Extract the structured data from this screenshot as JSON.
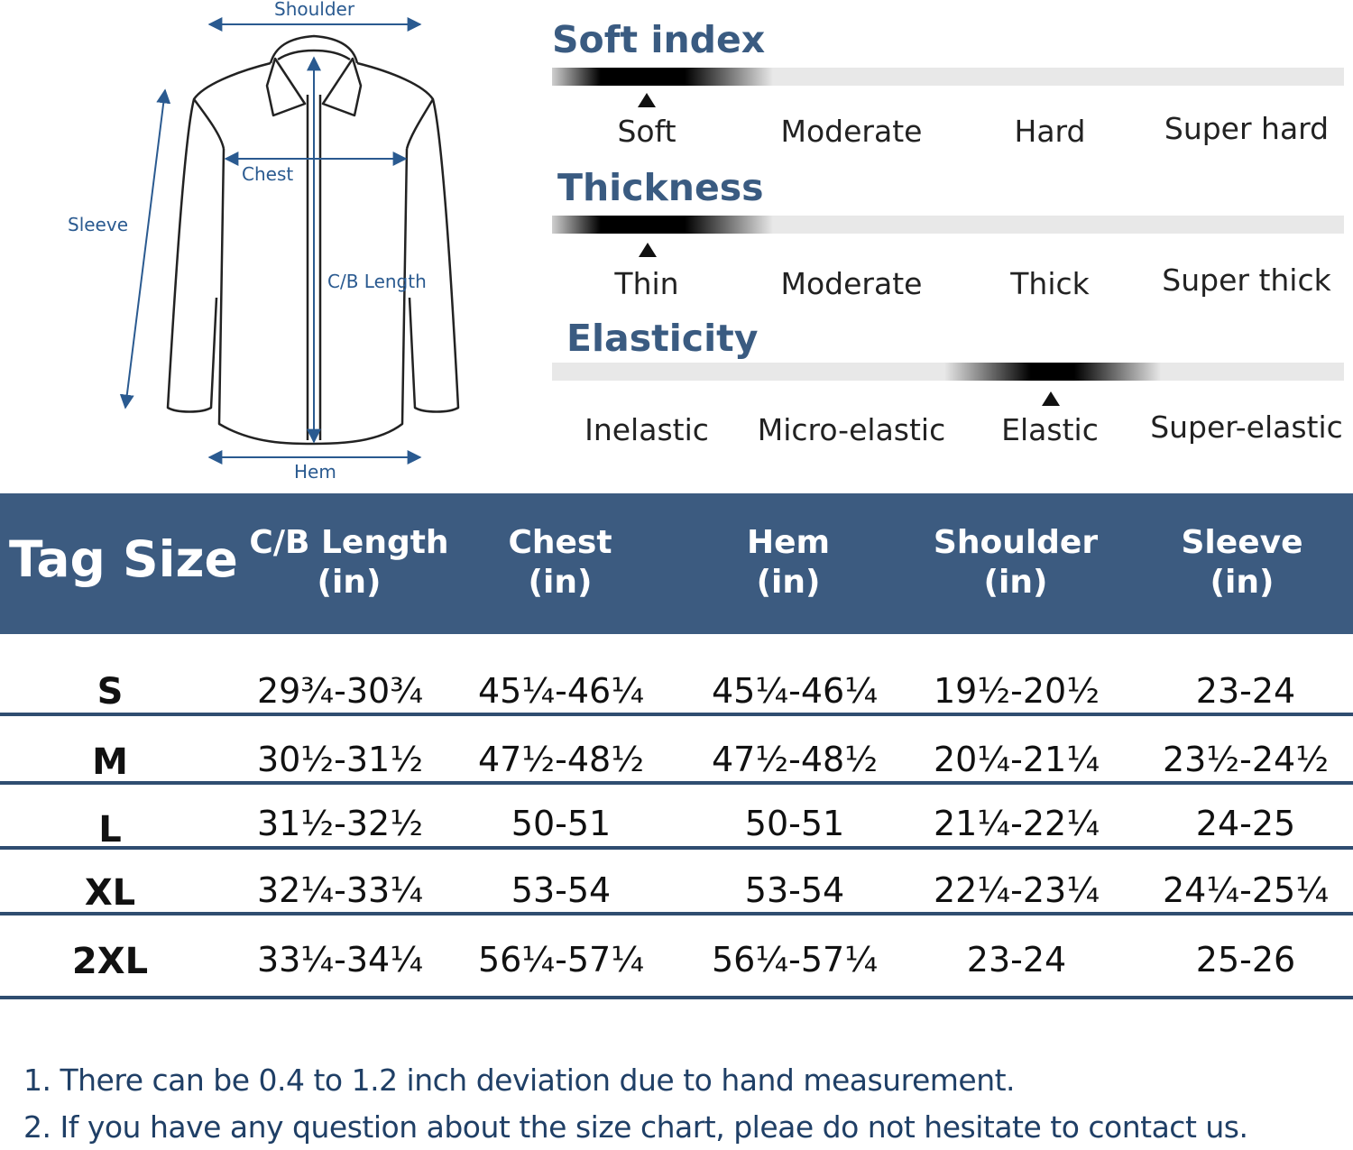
{
  "diagram": {
    "labels": {
      "shoulder": "Shoulder",
      "chest": "Chest",
      "sleeve": "Sleeve",
      "cb_length": "C/B Length",
      "hem": "Hem"
    }
  },
  "scales": [
    {
      "title": "Soft index",
      "options": [
        "Soft",
        "Moderate",
        "Hard",
        "Super hard"
      ],
      "selected": "Soft"
    },
    {
      "title": "Thickness",
      "options": [
        "Thin",
        "Moderate",
        "Thick",
        "Super thick"
      ],
      "selected": "Thin"
    },
    {
      "title": "Elasticity",
      "options": [
        "Inelastic",
        "Micro-elastic",
        "Elastic",
        "Super-elastic"
      ],
      "selected": "Elastic"
    }
  ],
  "size_table": {
    "tag_size_label": "Tag Size",
    "columns": [
      {
        "line1": "C/B Length",
        "line2": "(in)"
      },
      {
        "line1": "Chest",
        "line2": "(in)"
      },
      {
        "line1": "Hem",
        "line2": "(in)"
      },
      {
        "line1": "Shoulder",
        "line2": "(in)"
      },
      {
        "line1": "Sleeve",
        "line2": "(in)"
      }
    ],
    "rows": [
      {
        "size": "S",
        "values": [
          "29¾-30¾",
          "45¼-46¼",
          "45¼-46¼",
          "19½-20½",
          "23-24"
        ]
      },
      {
        "size": "M",
        "values": [
          "30½-31½",
          "47½-48½",
          "47½-48½",
          "20¼-21¼",
          "23½-24½"
        ]
      },
      {
        "size": "L",
        "values": [
          "31½-32½",
          "50-51",
          "50-51",
          "21¼-22¼",
          "24-25"
        ]
      },
      {
        "size": "XL",
        "values": [
          "32¼-33¼",
          "53-54",
          "53-54",
          "22¼-23¼",
          "24¼-25¼"
        ]
      },
      {
        "size": "2XL",
        "values": [
          "33¼-34¼",
          "56¼-57¼",
          "56¼-57¼",
          "23-24",
          "25-26"
        ]
      }
    ]
  },
  "notes": [
    "1. There can be 0.4 to 1.2 inch deviation due to hand measurement.",
    "2. If you have any question about the size chart, pleae do not hesitate to contact us."
  ],
  "colors": {
    "header_bg": "#3c5b80",
    "title_text": "#3a5b81",
    "dimension_text": "#2a5a90",
    "note_text": "#1f3f66"
  }
}
